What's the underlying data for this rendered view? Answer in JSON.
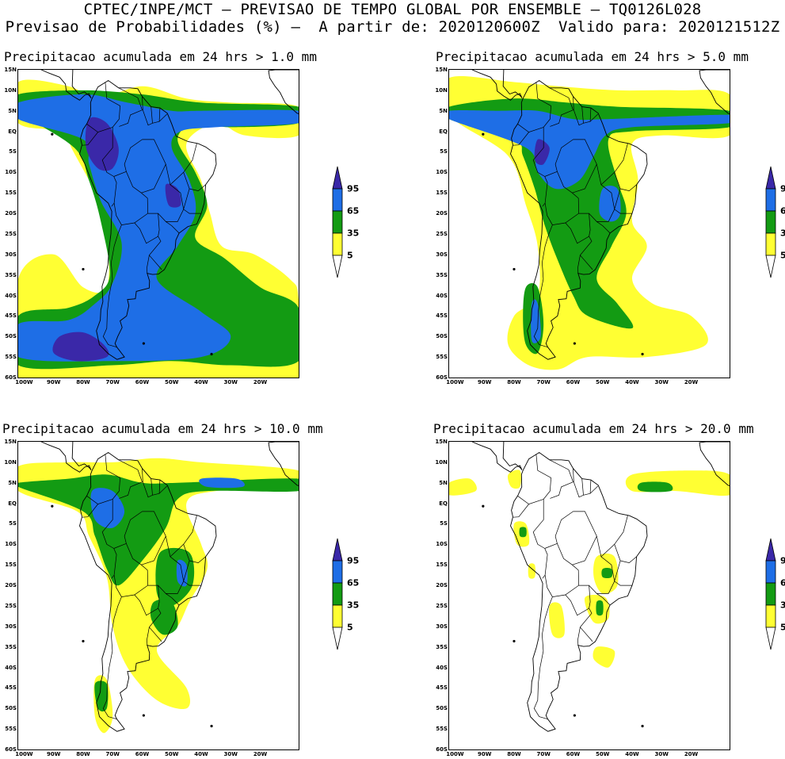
{
  "header": {
    "line1": "CPTEC/INPE/MCT – PREVISAO DE TEMPO GLOBAL POR ENSEMBLE – TQ0126L028",
    "line2": "Previsao de Probabilidades (%) –  A partir de: 2020120600Z  Valido para: 2020121512Z"
  },
  "panels": [
    {
      "id": "p1",
      "title": "Precipitacao acumulada em 24 hrs > 1.0 mm"
    },
    {
      "id": "p2",
      "title": "Precipitacao acumulada em 24 hrs > 5.0 mm"
    },
    {
      "id": "p3",
      "title": "Precipitacao acumulada em 24 hrs > 10.0 mm"
    },
    {
      "id": "p4",
      "title": "Precipitacao acumulada em 24 hrs > 20.0 mm"
    }
  ],
  "axes": {
    "lat_labels": [
      "15N",
      "10N",
      "5N",
      "EQ",
      "5S",
      "10S",
      "15S",
      "20S",
      "25S",
      "30S",
      "35S",
      "40S",
      "45S",
      "50S",
      "55S",
      "60S"
    ],
    "lon_labels": [
      "100W",
      "90W",
      "80W",
      "70W",
      "60W",
      "50W",
      "40W",
      "30W",
      "20W"
    ]
  },
  "legend": {
    "labels": [
      "95",
      "65",
      "35",
      "5"
    ],
    "colors": {
      "yellow": "#ffff33",
      "green": "#139b13",
      "blue": "#1e6ee6",
      "purple": "#3a28a8"
    }
  }
}
